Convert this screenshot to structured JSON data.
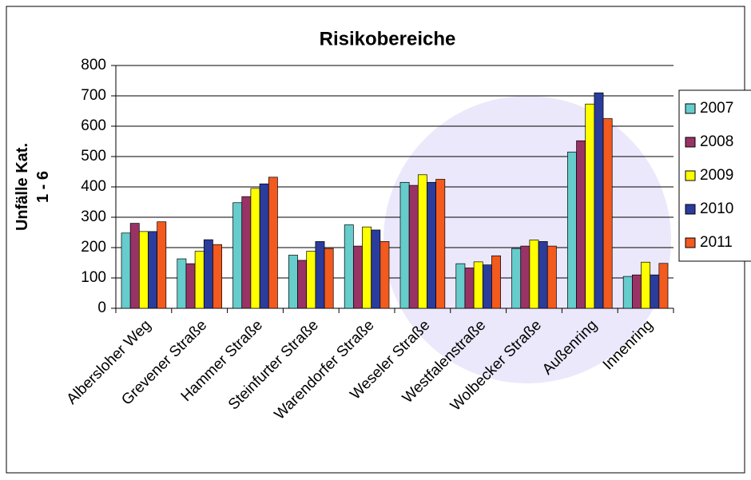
{
  "chart_data": {
    "type": "bar",
    "title": "Risikobereiche",
    "y_label": [
      "Unfälle Kat.",
      "1 - 6"
    ],
    "categories": [
      "Albersloher Weg",
      "Grevener Straße",
      "Hammer Straße",
      "Steinfurter Straße",
      "Warendorfer Straße",
      "Weseler Straße",
      "Westfalenstraße",
      "Wolbecker Straße",
      "Außenring",
      "Innenring"
    ],
    "series": [
      {
        "name": "2007",
        "color": "#66cccc",
        "values": [
          248,
          163,
          348,
          175,
          275,
          415,
          147,
          197,
          515,
          105
        ]
      },
      {
        "name": "2008",
        "color": "#993366",
        "values": [
          280,
          147,
          368,
          158,
          205,
          405,
          133,
          205,
          552,
          110
        ]
      },
      {
        "name": "2009",
        "color": "#ffff00",
        "values": [
          253,
          188,
          395,
          188,
          268,
          440,
          153,
          225,
          673,
          152
        ]
      },
      {
        "name": "2010",
        "color": "#2a3c9c",
        "values": [
          253,
          226,
          410,
          220,
          258,
          415,
          143,
          220,
          710,
          110
        ]
      },
      {
        "name": "2011",
        "color": "#f25a1e",
        "values": [
          285,
          210,
          432,
          197,
          220,
          425,
          173,
          205,
          625,
          148
        ]
      }
    ],
    "ylim": [
      0,
      800
    ],
    "yticks": [
      0,
      100,
      200,
      300,
      400,
      500,
      600,
      700,
      800
    ],
    "grid": true,
    "legend": "right"
  }
}
